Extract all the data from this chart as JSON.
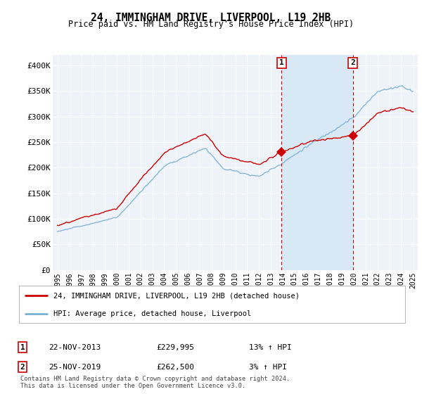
{
  "title": "24, IMMINGHAM DRIVE, LIVERPOOL, L19 2HB",
  "subtitle": "Price paid vs. HM Land Registry's House Price Index (HPI)",
  "ylim": [
    0,
    420000
  ],
  "yticks": [
    0,
    50000,
    100000,
    150000,
    200000,
    250000,
    300000,
    350000,
    400000
  ],
  "ytick_labels": [
    "£0",
    "£50K",
    "£100K",
    "£150K",
    "£200K",
    "£250K",
    "£300K",
    "£350K",
    "£400K"
  ],
  "background_color": "#ffffff",
  "plot_bg_color": "#eef3fa",
  "grid_color": "#ffffff",
  "sale1_price": 229995,
  "sale2_price": 262500,
  "sale1_date": "22-NOV-2013",
  "sale2_date": "25-NOV-2019",
  "sale1_hpi": "13%",
  "sale2_hpi": "3%",
  "legend_line1": "24, IMMINGHAM DRIVE, LIVERPOOL, L19 2HB (detached house)",
  "legend_line2": "HPI: Average price, detached house, Liverpool",
  "footer": "Contains HM Land Registry data © Crown copyright and database right 2024.\nThis data is licensed under the Open Government Licence v3.0.",
  "line_color_red": "#cc0000",
  "line_color_blue": "#7ab0d4",
  "shade_color": "#d8e8f4"
}
